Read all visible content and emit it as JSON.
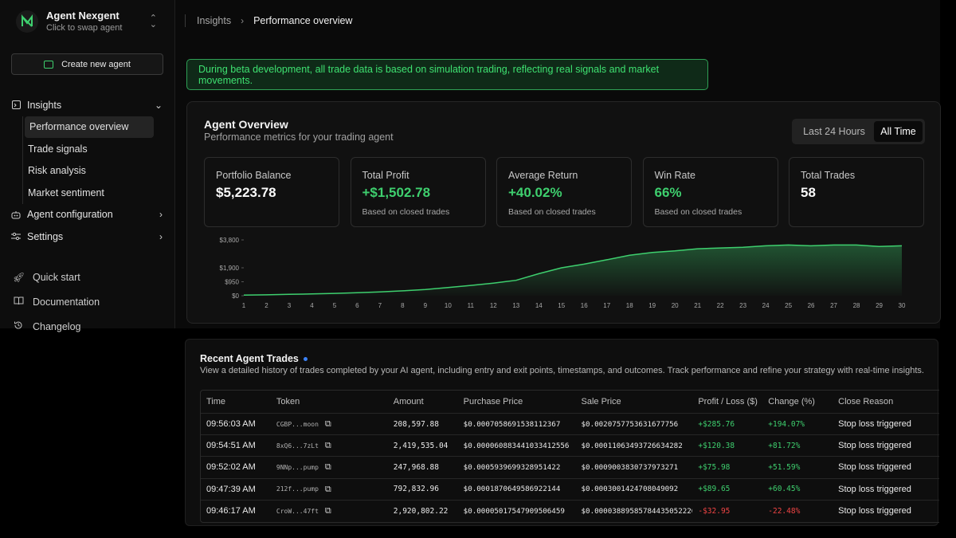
{
  "agent": {
    "name": "Agent Nexgent",
    "subtitle": "Click to swap agent"
  },
  "sidebar": {
    "create_label": "Create new agent",
    "insights_label": "Insights",
    "insights_items": [
      {
        "label": "Performance overview",
        "active": true
      },
      {
        "label": "Trade signals"
      },
      {
        "label": "Risk analysis"
      },
      {
        "label": "Market sentiment"
      }
    ],
    "agent_config_label": "Agent configuration",
    "settings_label": "Settings",
    "bottom_links": [
      {
        "label": "Quick start",
        "icon": "rocket-icon"
      },
      {
        "label": "Documentation",
        "icon": "book-icon"
      },
      {
        "label": "Changelog",
        "icon": "history-icon"
      }
    ]
  },
  "breadcrumb": {
    "parent": "Insights",
    "current": "Performance overview"
  },
  "banner": "During beta development, all trade data is based on simulation trading, reflecting real signals and market movements.",
  "overview": {
    "title": "Agent Overview",
    "subtitle": "Performance metrics for your trading agent",
    "range_options": [
      "Last 24 Hours",
      "All Time"
    ],
    "range_selected": "All Time",
    "cards": [
      {
        "label": "Portfolio Balance",
        "value": "$5,223.78",
        "note": ""
      },
      {
        "label": "Total Profit",
        "value": "+$1,502.78",
        "note": "Based on closed trades",
        "positive": true
      },
      {
        "label": "Average Return",
        "value": "+40.02%",
        "note": "Based on closed trades",
        "positive": true
      },
      {
        "label": "Win Rate",
        "value": "66%",
        "note": "Based on closed trades",
        "positive": true
      },
      {
        "label": "Total Trades",
        "value": "58",
        "note": ""
      }
    ]
  },
  "chart_data": {
    "type": "area",
    "x": [
      1,
      2,
      3,
      4,
      5,
      6,
      7,
      8,
      9,
      10,
      11,
      12,
      13,
      14,
      15,
      16,
      17,
      18,
      19,
      20,
      21,
      22,
      23,
      24,
      25,
      26,
      27,
      28,
      29,
      30
    ],
    "series": [
      {
        "values": [
          40,
          60,
          90,
          120,
          160,
          200,
          260,
          330,
          420,
          560,
          700,
          860,
          1050,
          1500,
          1900,
          2150,
          2450,
          2750,
          2950,
          3050,
          3200,
          3250,
          3300,
          3400,
          3450,
          3400,
          3450,
          3450,
          3350,
          3400
        ]
      }
    ],
    "yticks": [
      "$3,800",
      "$1,900",
      "$950",
      "$0"
    ],
    "ytick_values": [
      3800,
      1900,
      950,
      0
    ],
    "ylim": [
      0,
      3800
    ],
    "grid": false,
    "color": "#3ecf6e"
  },
  "trades": {
    "title": "Recent Agent Trades",
    "subtitle": "View a detailed history of trades completed by your AI agent, including entry and exit points, timestamps, and outcomes. Track performance and refine your strategy with real-time insights.",
    "columns": [
      "Time",
      "Token",
      "Amount",
      "Purchase Price",
      "Sale Price",
      "Profit / Loss ($)",
      "Change (%)",
      "Close Reason"
    ],
    "rows": [
      {
        "time": "09:56:03 AM",
        "token": "CGBP...moon",
        "amount": "208,597.88",
        "purchase": "$0.0007058691538112367",
        "sale": "$0.0020757753631677756",
        "pl": "+$285.76",
        "change": "+194.07%",
        "reason": "Stop loss triggered",
        "positive": true
      },
      {
        "time": "09:54:51 AM",
        "token": "8xQ6...7zLt",
        "amount": "2,419,535.04",
        "purchase": "$0.000060883441033412556",
        "sale": "$0.00011063493726634282",
        "pl": "+$120.38",
        "change": "+81.72%",
        "reason": "Stop loss triggered",
        "positive": true
      },
      {
        "time": "09:52:02 AM",
        "token": "9NNp...pump",
        "amount": "247,968.88",
        "purchase": "$0.0005939699328951422",
        "sale": "$0.0009003830737973271",
        "pl": "+$75.98",
        "change": "+51.59%",
        "reason": "Stop loss triggered",
        "positive": true
      },
      {
        "time": "09:47:39 AM",
        "token": "212f...pump",
        "amount": "792,832.96",
        "purchase": "$0.0001870649586922144",
        "sale": "$0.0003001424708049092",
        "pl": "+$89.65",
        "change": "+60.45%",
        "reason": "Stop loss triggered",
        "positive": true
      },
      {
        "time": "09:46:17 AM",
        "token": "CroW...47ft",
        "amount": "2,920,802.22",
        "purchase": "$0.00005017547909506459",
        "sale": "$0.00003889585784435052226",
        "pl": "-$32.95",
        "change": "-22.48%",
        "reason": "Stop loss triggered",
        "positive": false
      }
    ]
  }
}
